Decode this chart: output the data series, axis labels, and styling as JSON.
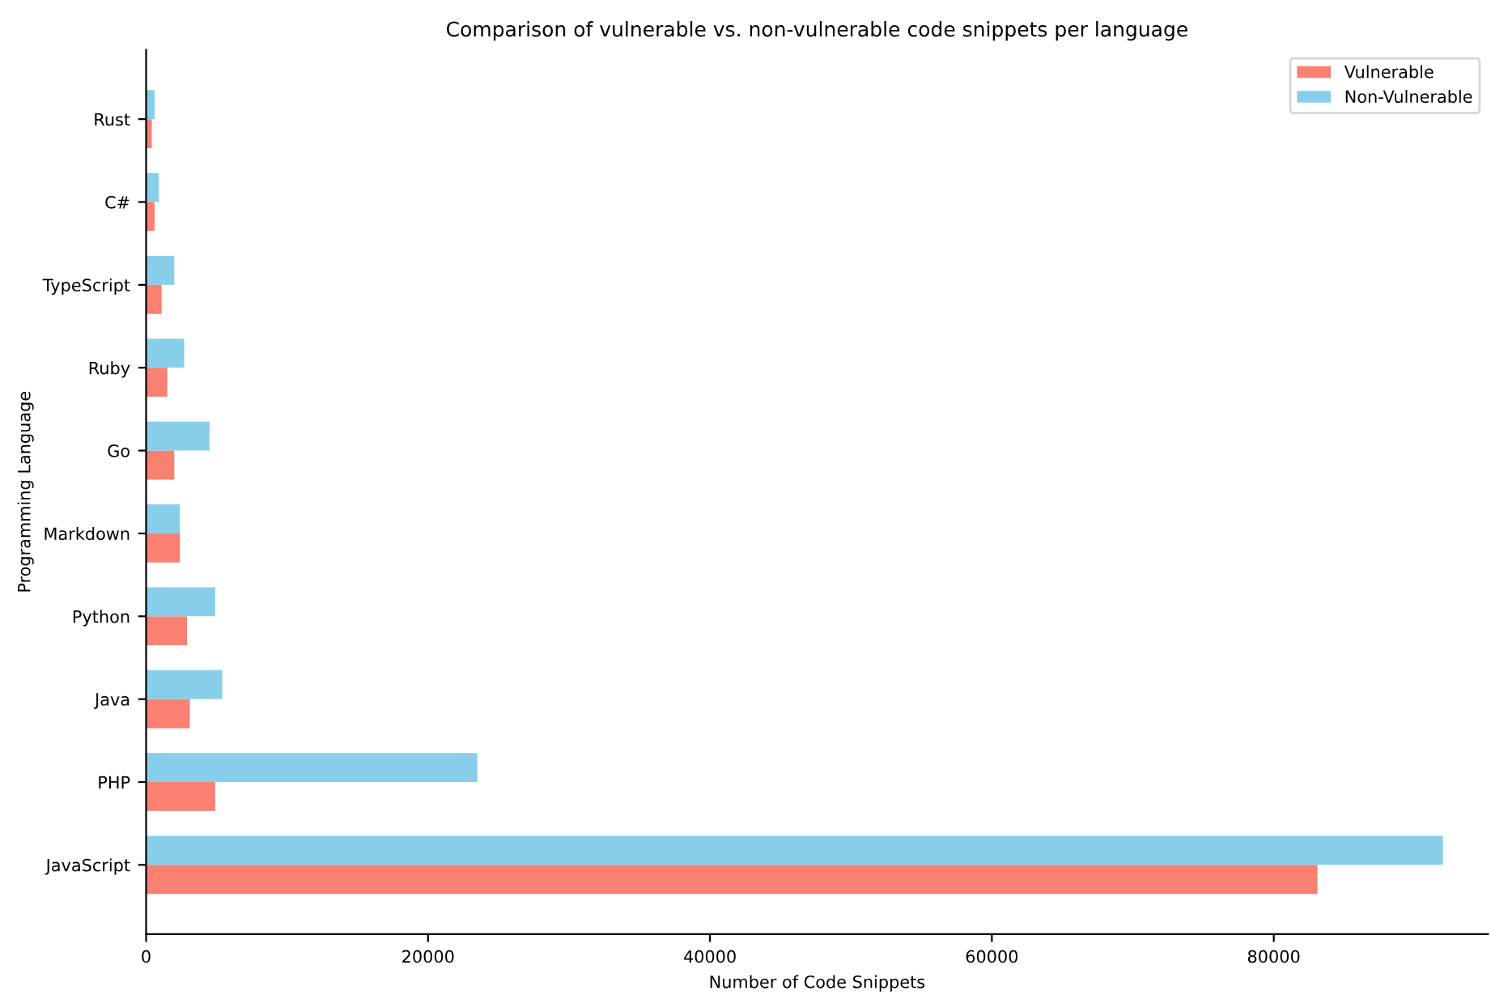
{
  "chart_data": {
    "type": "bar",
    "orientation": "horizontal",
    "title": "Comparison of vulnerable vs. non-vulnerable code snippets per language",
    "xlabel": "Number of Code Snippets",
    "ylabel": "Programming Language",
    "categories": [
      "Rust",
      "C#",
      "TypeScript",
      "Ruby",
      "Go",
      "Markdown",
      "Python",
      "Java",
      "PHP",
      "JavaScript"
    ],
    "series": [
      {
        "name": "Vulnerable",
        "color": "#fa8072",
        "values": [
          400,
          600,
          1100,
          1500,
          2000,
          2400,
          2900,
          3100,
          4900,
          83100
        ]
      },
      {
        "name": "Non-Vulnerable",
        "color": "#87ceeb",
        "values": [
          600,
          900,
          2000,
          2700,
          4500,
          2400,
          4900,
          5400,
          23500,
          92000
        ]
      }
    ],
    "xlim": [
      0,
      95200
    ],
    "xticks": [
      0,
      20000,
      40000,
      60000,
      80000
    ],
    "legend": "top right",
    "grid": false
  }
}
